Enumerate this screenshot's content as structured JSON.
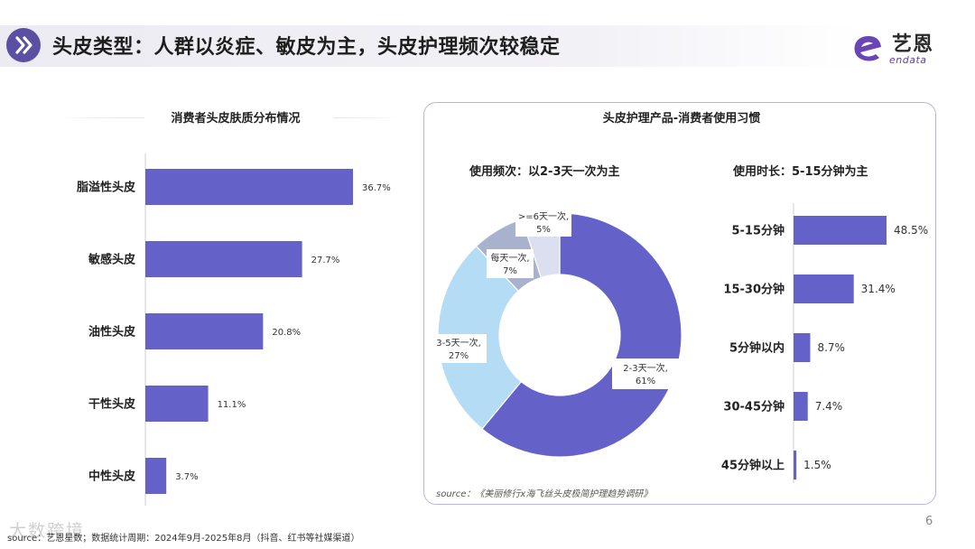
{
  "header": {
    "title": "头皮类型：人群以炎症、敏皮为主，头皮护理频次较稳定",
    "logo_cn": "艺恩",
    "logo_en": "endata"
  },
  "colors": {
    "bar": "#6461c8",
    "donut": [
      "#6461c8",
      "#b5dcf5",
      "#a8b2cc",
      "#dcdff0"
    ],
    "panel_border": "#b8b4de"
  },
  "chart_data": [
    {
      "type": "bar",
      "orientation": "horizontal",
      "title": "消费者头皮肤质分布情况",
      "categories": [
        "脂溢性头皮",
        "敏感头皮",
        "油性头皮",
        "干性头皮",
        "中性头皮"
      ],
      "values": [
        36.7,
        27.7,
        20.8,
        11.1,
        3.7
      ],
      "value_labels": [
        "36.7%",
        "27.7%",
        "20.8%",
        "11.1%",
        "3.7%"
      ]
    },
    {
      "type": "pie",
      "subtype": "donut",
      "title": "使用频次：以2-3天一次为主",
      "slices": [
        {
          "label_line1": "2-3天一次,",
          "label_line2": "61%",
          "value": 61
        },
        {
          "label_line1": "3-5天一次,",
          "label_line2": "27%",
          "value": 27
        },
        {
          "label_line1": "每天一次,",
          "label_line2": "7%",
          "value": 7
        },
        {
          "label_line1": ">=6天一次,",
          "label_line2": "5%",
          "value": 5
        }
      ]
    },
    {
      "type": "bar",
      "orientation": "horizontal",
      "title": "使用时长：5-15分钟为主",
      "categories": [
        "5-15分钟",
        "15-30分钟",
        "5分钟以内",
        "30-45分钟",
        "45分钟以上"
      ],
      "values": [
        48.5,
        31.4,
        8.7,
        7.4,
        1.5
      ],
      "value_labels": [
        "48.5%",
        "31.4%",
        "8.7%",
        "7.4%",
        "1.5%"
      ]
    }
  ],
  "right_panel": {
    "title": "头皮护理产品-消费者使用习惯",
    "source": "source：《美丽修行x海飞丝头皮极简护理趋势调研》"
  },
  "footer": {
    "source": "source：艺恩星数；数据统计周期：2024年9月-2025年8月（抖音、红书等社媒渠道）",
    "page": "6",
    "watermark": "大数跨境"
  }
}
